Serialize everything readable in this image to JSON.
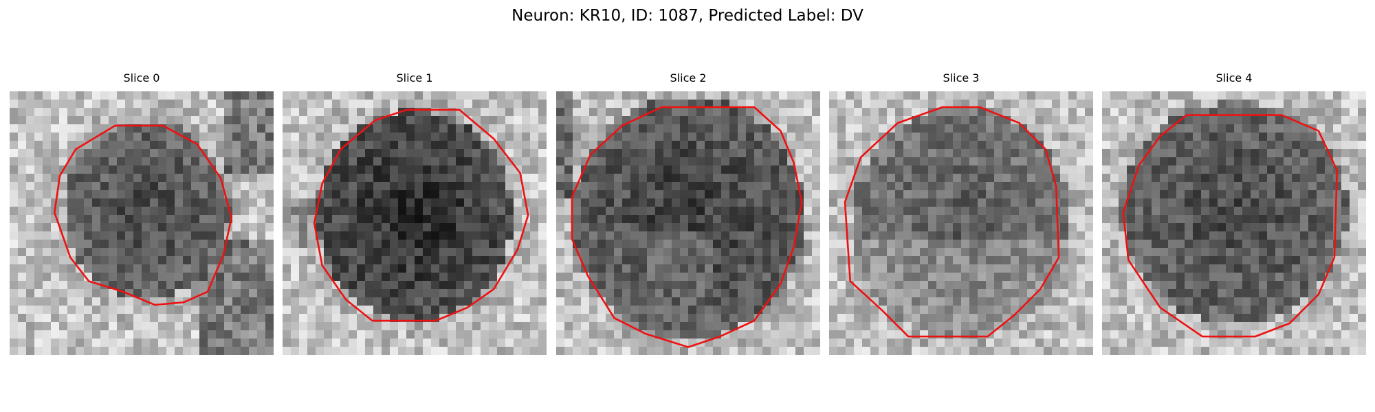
{
  "figure": {
    "title": "Neuron: KR10, ID: 1087, Predicted Label: DV"
  },
  "panels": [
    {
      "title": "Slice 0"
    },
    {
      "title": "Slice 1"
    },
    {
      "title": "Slice 2"
    },
    {
      "title": "Slice 3"
    },
    {
      "title": "Slice 4"
    }
  ],
  "contour_color": "#ee1111"
}
